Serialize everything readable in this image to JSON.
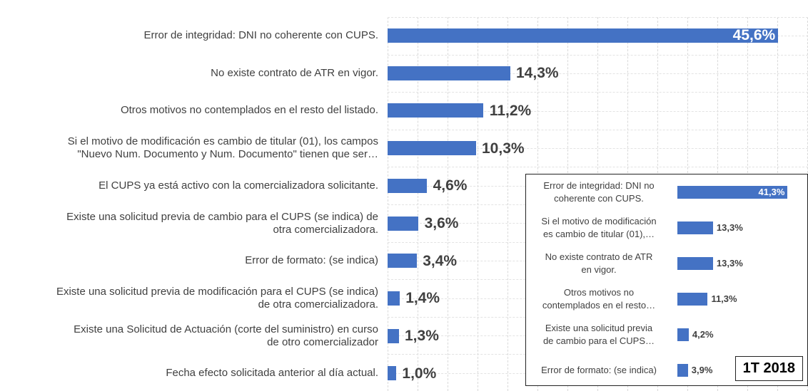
{
  "chart_data": [
    {
      "type": "bar",
      "orientation": "horizontal",
      "categories": [
        "Error de integridad: DNI no coherente con CUPS.",
        "No existe contrato de ATR en vigor.",
        "Otros motivos no contemplados en el resto del listado.",
        "Si el motivo de modificación es  cambio de titular (01), los campos\n\"Nuevo Num. Documento y Num. Documento\" tienen que ser…",
        "El CUPS ya está activo con la comercializadora solicitante.",
        "Existe una solicitud previa de cambio para el CUPS (se indica) de\notra comercializadora.",
        "Error de formato: (se indica)",
        "Existe una solicitud previa de modificación para el CUPS (se indica)\nde otra comercializadora.",
        "Existe una Solicitud de Actuación (corte del suministro) en curso\nde otro comercializador",
        "Fecha efecto solicitada anterior al día actual."
      ],
      "values": [
        45.6,
        14.3,
        11.2,
        10.3,
        4.6,
        3.6,
        3.4,
        1.4,
        1.3,
        1.0
      ],
      "value_labels": [
        "45,6%",
        "14,3%",
        "11,2%",
        "10,3%",
        "4,6%",
        "3,6%",
        "3,4%",
        "1,4%",
        "1,3%",
        "1,0%"
      ],
      "color": "#4472c4",
      "xlim": [
        0,
        46
      ],
      "grid": true
    },
    {
      "type": "bar",
      "orientation": "horizontal",
      "title": "1T 2018",
      "categories": [
        "Error de integridad: DNI no\ncoherente con CUPS.",
        "Si el motivo de modificación\nes  cambio de titular (01),…",
        "No existe contrato de ATR\nen vigor.",
        "Otros motivos no\ncontemplados en el resto…",
        "Existe una solicitud previa\nde cambio para el CUPS…",
        "Error de formato: (se indica)"
      ],
      "values": [
        41.3,
        13.3,
        13.3,
        11.3,
        4.2,
        3.9
      ],
      "value_labels": [
        "41,3%",
        "13,3%",
        "13,3%",
        "11,3%",
        "4,2%",
        "3,9%"
      ],
      "color": "#4472c4",
      "xlim": [
        0,
        42
      ]
    }
  ]
}
